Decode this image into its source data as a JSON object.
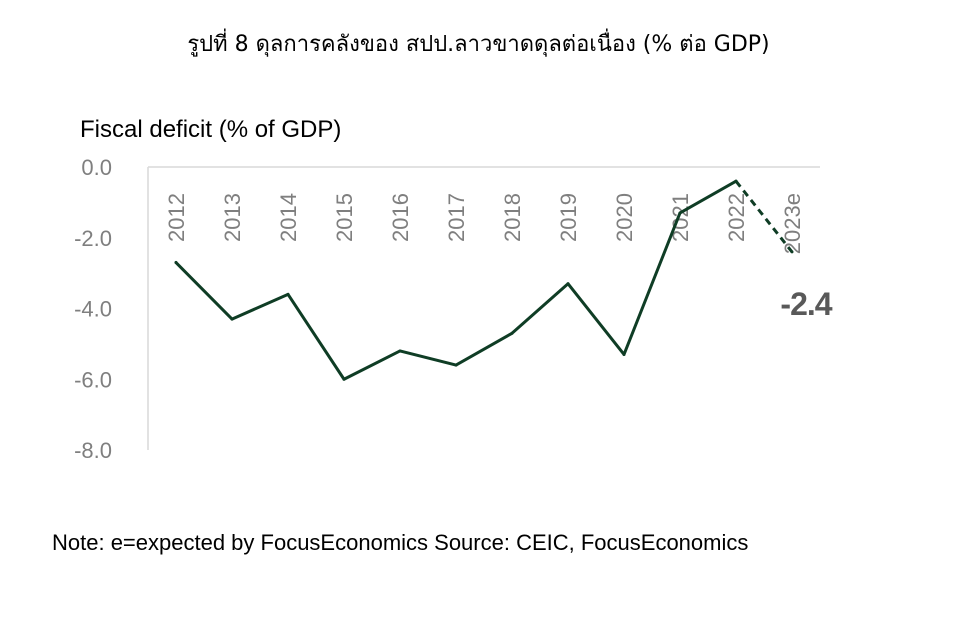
{
  "figure_title": "รูปที่ 8 ดุลการคลังของ สปป.ลาวขาดดุลต่อเนื่อง (% ต่อ GDP)",
  "note": "Note: e=expected by FocusEconomics Source: CEIC, FocusEconomics",
  "colors": {
    "line": "#0f3d25",
    "axis": "#d9d9d9",
    "tick_text": "#7f7f7f",
    "end_label": "#595959"
  },
  "chart_data": {
    "type": "line",
    "title": "",
    "xlabel": "",
    "ylabel": "Fiscal deficit (% of GDP)",
    "categories": [
      "2012",
      "2013",
      "2014",
      "2015",
      "2016",
      "2017",
      "2018",
      "2019",
      "2020",
      "2021",
      "2022",
      "2023e"
    ],
    "values": [
      -2.7,
      -4.3,
      -3.6,
      -6.0,
      -5.2,
      -5.6,
      -4.7,
      -3.3,
      -5.3,
      -1.3,
      -0.4,
      -2.4
    ],
    "actual_through": "2022",
    "forecast": [
      "2023e"
    ],
    "forecast_style": "dashed",
    "ylim": [
      -8.0,
      0.0
    ],
    "yticks": [
      "0.0",
      "-2.0",
      "-4.0",
      "-6.0",
      "-8.0"
    ],
    "grid": false,
    "annotations": [
      {
        "category": "2023e",
        "text": "-2.4"
      }
    ]
  }
}
